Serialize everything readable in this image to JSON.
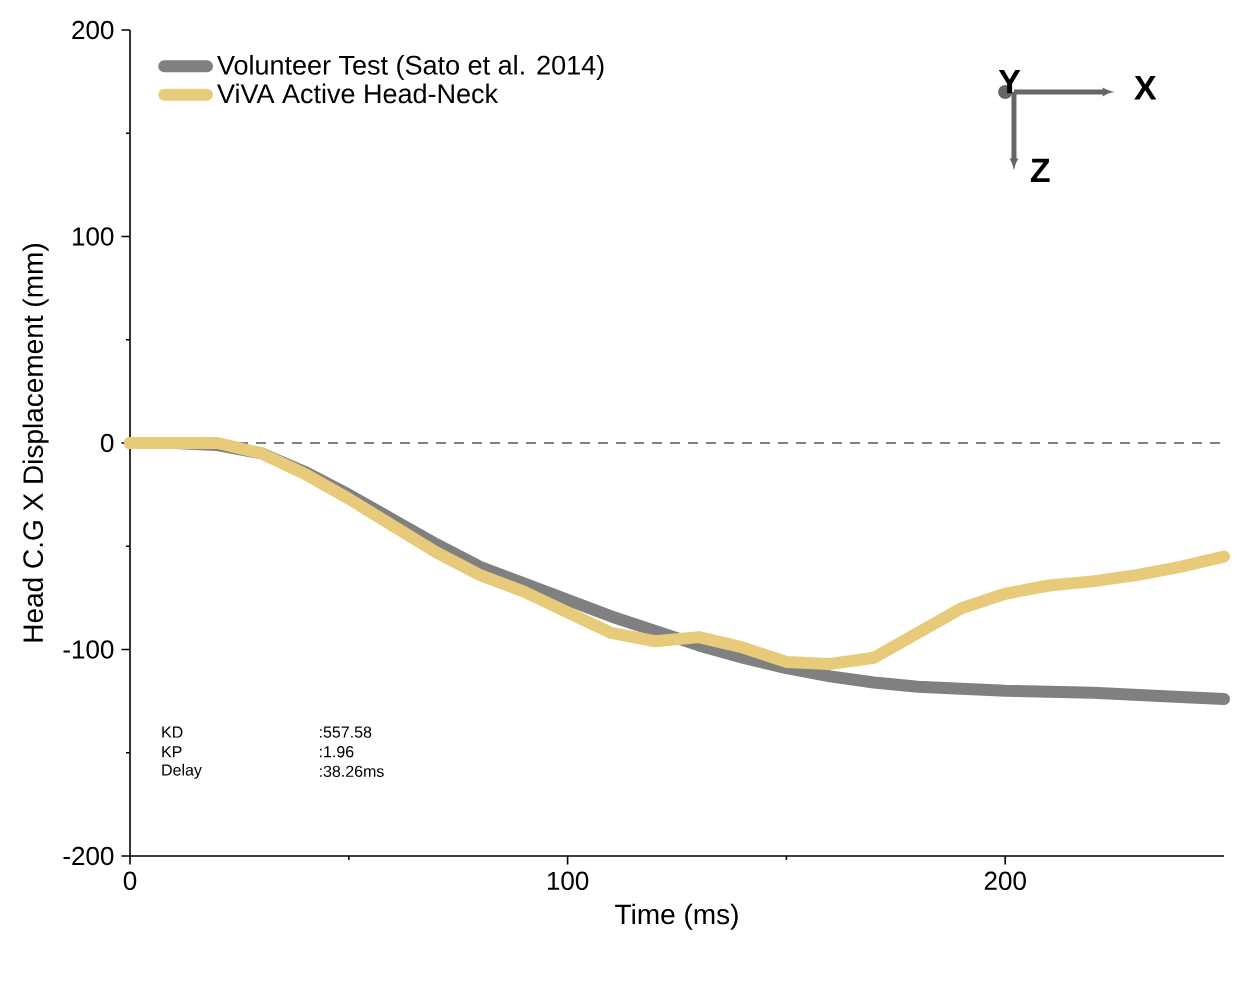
{
  "chart_data": {
    "type": "line",
    "xlabel": "Time (ms)",
    "ylabel": "Head C.G X Displacement (mm)",
    "xlim": [
      0,
      250
    ],
    "ylim": [
      -200,
      200
    ],
    "xticks": [
      0,
      100,
      200
    ],
    "yticks": [
      -200,
      -100,
      0,
      100,
      200
    ],
    "grid": false,
    "legend": "top left",
    "marker": "none",
    "line_style": "solid",
    "ref_lines": [
      {
        "axis": "y",
        "value": 0,
        "color": "#555555",
        "line_style": "dashed"
      }
    ],
    "annotations": [
      "KD",
      ":557.58",
      "KP",
      ":1.96",
      "Delay",
      ":38.26ms",
      "X",
      "Y",
      "Z"
    ],
    "series": [
      {
        "name": "Volunteer Test (Sato et al. 2014)",
        "color": "#808080",
        "x": [
          0,
          10,
          20,
          30,
          40,
          50,
          60,
          70,
          80,
          90,
          100,
          110,
          120,
          130,
          140,
          150,
          160,
          170,
          180,
          190,
          200,
          220,
          240,
          250
        ],
        "values": [
          0,
          0,
          -1,
          -5,
          -14,
          -25,
          -37,
          -49,
          -60,
          -68,
          -76,
          -84,
          -91,
          -98,
          -104,
          -109,
          -113,
          -116,
          -118,
          -119,
          -120,
          -121,
          -123,
          -124
        ]
      },
      {
        "name": "ViVA Active Head-Neck",
        "color": "#e8cb7a",
        "x": [
          0,
          10,
          20,
          30,
          40,
          50,
          60,
          70,
          80,
          90,
          100,
          110,
          120,
          130,
          140,
          150,
          160,
          170,
          180,
          190,
          200,
          210,
          220,
          230,
          240,
          250
        ],
        "values": [
          0,
          0,
          0,
          -5,
          -15,
          -27,
          -40,
          -53,
          -64,
          -72,
          -82,
          -92,
          -96,
          -94,
          -99,
          -106,
          -107,
          -104,
          -92,
          -80,
          -73,
          -69,
          -67,
          -64,
          -60,
          -55
        ]
      }
    ]
  }
}
